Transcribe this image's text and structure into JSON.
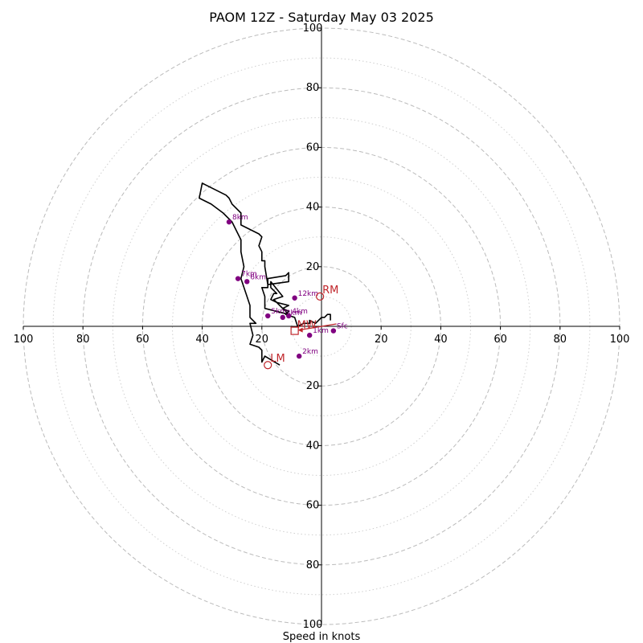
{
  "chart_data": {
    "type": "hodograph",
    "title": "PAOM 12Z - Saturday May 03 2025",
    "xlabel": "Speed in knots",
    "ylabel": "",
    "range_knots": [
      -100,
      100
    ],
    "ring_labels": [
      "20",
      "40",
      "60",
      "80",
      "100"
    ],
    "rings_major": [
      20,
      40,
      60,
      80,
      100
    ],
    "rings_minor": [
      10,
      30,
      50,
      70,
      90
    ],
    "colors": {
      "rings": "#bbbbbb",
      "trace": "#000000",
      "height_points": "#800080",
      "motion": "#c0262b"
    },
    "trace": [
      [
        3,
        2
      ],
      [
        3,
        4
      ],
      [
        2,
        4
      ],
      [
        1,
        3
      ],
      [
        0,
        3
      ],
      [
        -2,
        1
      ],
      [
        -4,
        2
      ],
      [
        -4,
        1
      ],
      [
        -6,
        1
      ],
      [
        -8,
        0
      ],
      [
        -9,
        3
      ],
      [
        -12,
        4
      ],
      [
        -11,
        5
      ],
      [
        -13,
        6
      ],
      [
        -11,
        7
      ],
      [
        -15,
        8
      ],
      [
        -17,
        9
      ],
      [
        -16,
        11
      ],
      [
        -15,
        11
      ],
      [
        -17,
        13
      ],
      [
        -17,
        15
      ],
      [
        -13,
        10
      ],
      [
        -16,
        9
      ],
      [
        -11,
        4
      ],
      [
        -19,
        6
      ],
      [
        -19,
        8
      ],
      [
        -19,
        10
      ],
      [
        -20,
        13
      ],
      [
        -18,
        13
      ],
      [
        -18,
        16
      ],
      [
        -12,
        17
      ],
      [
        -11,
        18
      ],
      [
        -11,
        15
      ],
      [
        -18,
        14
      ],
      [
        -19,
        20
      ],
      [
        -19,
        22
      ],
      [
        -20,
        22
      ],
      [
        -20,
        25
      ],
      [
        -21,
        27
      ],
      [
        -20,
        30
      ],
      [
        -21,
        31
      ],
      [
        -25,
        33
      ],
      [
        -27,
        34
      ],
      [
        -27,
        38
      ],
      [
        -30,
        41
      ],
      [
        -31,
        43
      ],
      [
        -32,
        44
      ],
      [
        -40,
        48
      ],
      [
        -41,
        43
      ],
      [
        -37,
        41
      ],
      [
        -33,
        38
      ],
      [
        -30,
        35
      ],
      [
        -28,
        31
      ],
      [
        -27,
        29
      ],
      [
        -27,
        25
      ],
      [
        -26,
        20
      ],
      [
        -27,
        16
      ],
      [
        -25,
        10
      ],
      [
        -24,
        7
      ],
      [
        -24,
        3
      ],
      [
        -22,
        1
      ],
      [
        -24,
        1
      ],
      [
        -23,
        -3
      ],
      [
        -24,
        -6
      ],
      [
        -21,
        -7
      ],
      [
        -20,
        -8
      ],
      [
        -20,
        -12
      ],
      [
        -19,
        -10
      ],
      [
        -14,
        -13
      ]
    ],
    "height_points": [
      {
        "label": "Sfc",
        "u": 4,
        "v": -1.5
      },
      {
        "label": "1km",
        "u": -4,
        "v": -3
      },
      {
        "label": "2km",
        "u": -7.5,
        "v": -10
      },
      {
        "label": "3km",
        "u": -13,
        "v": 3
      },
      {
        "label": "4km",
        "u": -11,
        "v": 3.5
      },
      {
        "label": "5km",
        "u": -18,
        "v": 3.5
      },
      {
        "label": "6km",
        "u": -25,
        "v": 15
      },
      {
        "label": "7km",
        "u": -28,
        "v": 16
      },
      {
        "label": "8km",
        "u": -31,
        "v": 35
      },
      {
        "label": "12km",
        "u": -9,
        "v": 9.5
      }
    ],
    "storm_motion": {
      "RM": {
        "label": "RM",
        "u": -0.5,
        "v": 10
      },
      "LM": {
        "label": "LM",
        "u": -18,
        "v": -13
      },
      "MW": {
        "label": "MW",
        "u": -9,
        "v": -1.5
      }
    }
  }
}
